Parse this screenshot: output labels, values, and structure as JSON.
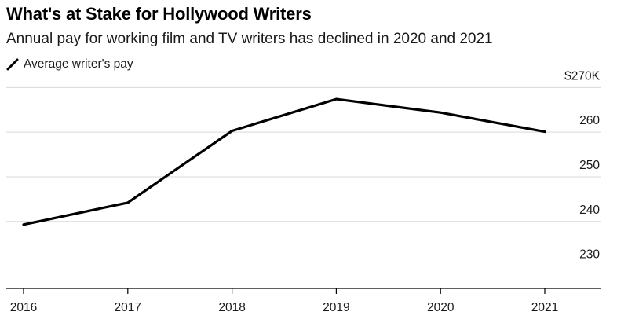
{
  "chart_data": {
    "type": "line",
    "title": "What's at Stake for Hollywood Writers",
    "subtitle": "Annual pay for working film and TV writers has declined in 2020 and 2021",
    "legend": [
      "Average writer's pay"
    ],
    "x": [
      "2016",
      "2017",
      "2018",
      "2019",
      "2020",
      "2021"
    ],
    "series": [
      {
        "name": "Average writer's pay",
        "values": [
          239.3,
          244.2,
          260.3,
          267.4,
          264.4,
          260.1
        ]
      }
    ],
    "ylim": [
      225,
      272
    ],
    "yticks": [
      230,
      240,
      250,
      260,
      270
    ],
    "ytick_labels": [
      "230",
      "240",
      "250",
      "260",
      "$270K"
    ],
    "ytick_label_position": "right",
    "line_color": "#000000",
    "grid_color": "#d9d9d9",
    "axis_color": "#000000"
  }
}
